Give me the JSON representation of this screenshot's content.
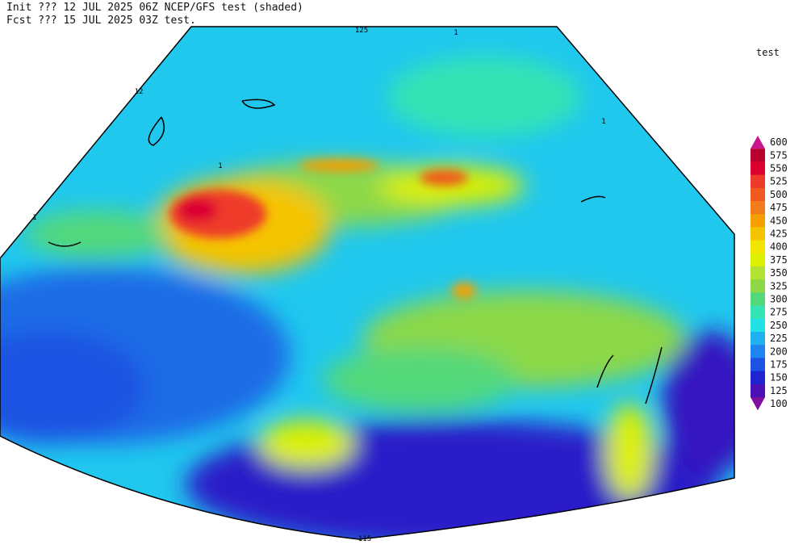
{
  "header": {
    "line1": "Init  ??? 12 JUL 2025 06Z  NCEP/GFS test (shaded)",
    "line2": "Fcst ??? 15 JUL 2025 03Z  test."
  },
  "legend": {
    "title": "test",
    "levels": [
      600,
      575,
      550,
      525,
      500,
      475,
      450,
      425,
      400,
      375,
      350,
      325,
      300,
      275,
      250,
      225,
      200,
      175,
      150,
      125,
      100
    ],
    "colors": [
      "#c8168c",
      "#b8002e",
      "#dc0030",
      "#ee3a2a",
      "#f05a1e",
      "#f27c1c",
      "#f5a000",
      "#f5c400",
      "#f2e600",
      "#dcf000",
      "#b2e232",
      "#8cd846",
      "#52d87a",
      "#34e4b4",
      "#20e2e6",
      "#20b2f0",
      "#1e84f0",
      "#1e52e2",
      "#1e24d0",
      "#4c10b4",
      "#7e10a0"
    ]
  },
  "contour_labels": [
    "125",
    "12",
    "1",
    "1",
    "1",
    "1",
    "115"
  ]
}
